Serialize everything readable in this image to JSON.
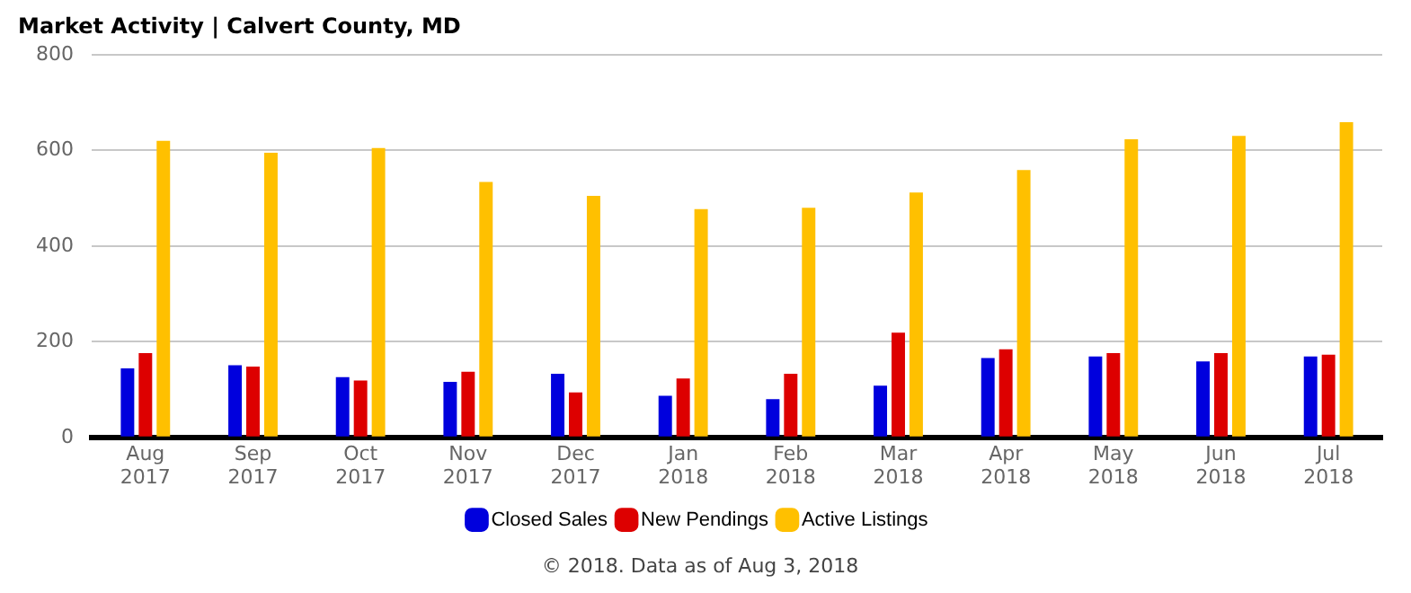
{
  "chart_data": {
    "type": "bar",
    "title": "Market Activity | Calvert County, MD",
    "categories": [
      "Aug 2017",
      "Sep 2017",
      "Oct 2017",
      "Nov 2017",
      "Dec 2017",
      "Jan 2018",
      "Feb 2018",
      "Mar 2018",
      "Apr 2018",
      "May 2018",
      "Jun 2018",
      "Jul 2018"
    ],
    "series": [
      {
        "name": "Closed Sales",
        "color": "#0000dd",
        "values": [
          144,
          151,
          126,
          116,
          133,
          87,
          80,
          108,
          166,
          169,
          159,
          169
        ]
      },
      {
        "name": "New Pendings",
        "color": "#dd0000",
        "values": [
          176,
          148,
          119,
          137,
          94,
          123,
          133,
          219,
          184,
          176,
          176,
          173
        ]
      },
      {
        "name": "Active Listings",
        "color": "#ffc000",
        "values": [
          620,
          595,
          605,
          534,
          505,
          477,
          480,
          512,
          559,
          623,
          630,
          659
        ]
      }
    ],
    "ylim": [
      0,
      800
    ],
    "yticks": [
      0,
      200,
      400,
      600,
      800
    ],
    "grid": "y",
    "legend": "bottom",
    "annotations": [
      "© 2018. Data as of Aug 3, 2018"
    ]
  }
}
